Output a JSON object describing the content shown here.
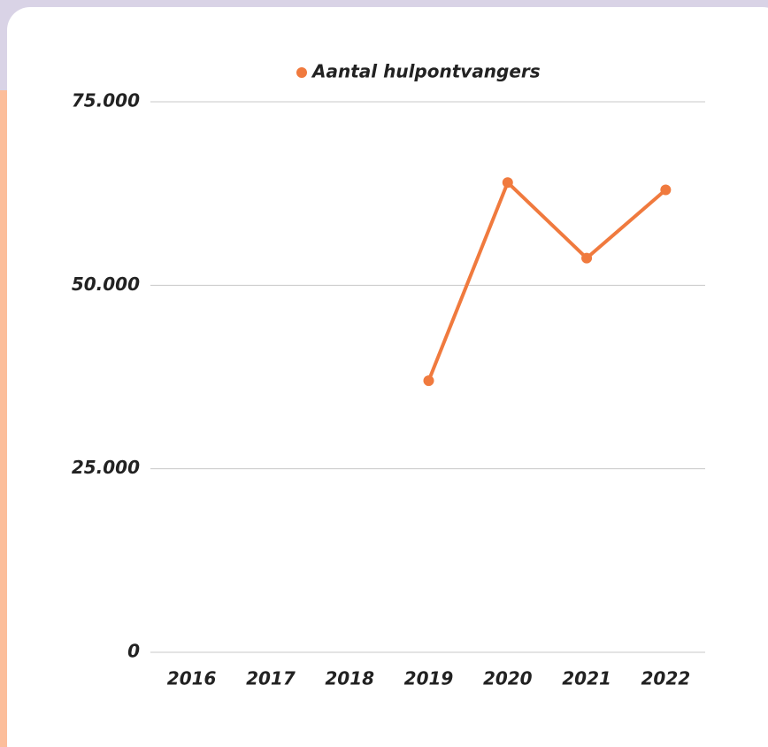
{
  "chart_data": {
    "type": "line",
    "categories": [
      "2016",
      "2017",
      "2018",
      "2019",
      "2020",
      "2021",
      "2022"
    ],
    "series": [
      {
        "name": "Aantal hulpontvangers",
        "color": "#f07a3e",
        "values": [
          null,
          null,
          null,
          37000,
          64000,
          53700,
          63000
        ]
      }
    ],
    "ylim": [
      0,
      75000
    ],
    "yticks": [
      0,
      {
        "value": 25000,
        "label": "25.000"
      },
      {
        "value": 50000,
        "label": "50.000"
      },
      {
        "value": 75000,
        "label": "75.000"
      }
    ],
    "grid": true,
    "legend": "top"
  }
}
